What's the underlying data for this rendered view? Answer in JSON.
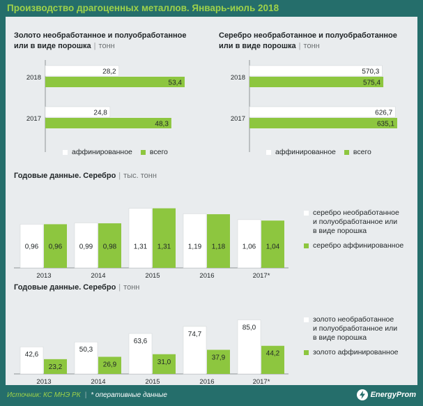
{
  "header": {
    "title": "Производство драгоценных металлов. Январь-июль 2018"
  },
  "colors": {
    "background": "#256e6b",
    "panel": "#e9ecee",
    "white_bar": "#ffffff",
    "green_bar": "#8dc63f",
    "axis": "#8f9496",
    "title_green": "#9ed24a"
  },
  "chart_data": [
    {
      "id": "gold",
      "type": "bar",
      "orientation": "horizontal",
      "title_line1": "Золото необработанное  и полуобработанное",
      "title_line2": "или в виде порошка",
      "unit": "тонн",
      "categories": [
        "2018",
        "2017"
      ],
      "series": [
        {
          "name": "аффинированное",
          "values": [
            28.2,
            24.8
          ],
          "labels": [
            "28,2",
            "24,8"
          ],
          "color": "#ffffff"
        },
        {
          "name": "всего",
          "values": [
            53.4,
            48.3
          ],
          "labels": [
            "53,4",
            "48,3"
          ],
          "color": "#8dc63f"
        }
      ]
    },
    {
      "id": "silver",
      "type": "bar",
      "orientation": "horizontal",
      "title_line1": "Серебро необработанное  и полуобработанное",
      "title_line2": "или в виде порошка",
      "unit": "тонн",
      "categories": [
        "2018",
        "2017"
      ],
      "series": [
        {
          "name": "аффинированное",
          "values": [
            570.3,
            626.7
          ],
          "labels": [
            "570,3",
            "626,7"
          ],
          "color": "#ffffff"
        },
        {
          "name": "всего",
          "values": [
            575.4,
            635.1
          ],
          "labels": [
            "575,4",
            "635,1"
          ],
          "color": "#8dc63f"
        }
      ]
    },
    {
      "id": "annual-silver",
      "type": "bar",
      "orientation": "vertical",
      "title": "Годовые данные. Серебро",
      "unit": "тыс. тонн",
      "categories": [
        "2013",
        "2014",
        "2015",
        "2016",
        "2017*"
      ],
      "ylim": [
        0,
        1.35
      ],
      "series": [
        {
          "name": "серебро необработанное и полуобработанное или в виде порошка",
          "values": [
            0.96,
            0.99,
            1.31,
            1.19,
            1.06
          ],
          "labels": [
            "0,96",
            "0,99",
            "1,31",
            "1,19",
            "1,06"
          ],
          "color": "#ffffff"
        },
        {
          "name": "серебро аффинированное",
          "values": [
            0.96,
            0.98,
            1.31,
            1.18,
            1.04
          ],
          "labels": [
            "0,96",
            "0,98",
            "1,31",
            "1,18",
            "1,04"
          ],
          "color": "#8dc63f"
        }
      ]
    },
    {
      "id": "annual-gold",
      "type": "bar",
      "orientation": "vertical",
      "title": "Годовые данные. Серебро",
      "unit": "тонн",
      "categories": [
        "2013",
        "2014",
        "2015",
        "2016",
        "2017*"
      ],
      "ylim": [
        0,
        90
      ],
      "series": [
        {
          "name": "золото необработанное и полуобработанное или в виде порошка",
          "values": [
            42.6,
            50.3,
            63.6,
            74.7,
            85.0
          ],
          "labels": [
            "42,6",
            "50,3",
            "63,6",
            "74,7",
            "85,0"
          ],
          "color": "#ffffff"
        },
        {
          "name": "золото аффинированное",
          "values": [
            23.2,
            26.9,
            31.0,
            37.9,
            44.2
          ],
          "labels": [
            "23,2",
            "26,9",
            "31,0",
            "37,9",
            "44,2"
          ],
          "color": "#8dc63f"
        }
      ]
    }
  ],
  "legends": {
    "annual_silver": [
      {
        "lines": [
          "серебро необработанное",
          "и полуобработанное или",
          "в виде порошка"
        ]
      },
      {
        "lines": [
          "серебро аффинированное"
        ]
      }
    ],
    "annual_gold": [
      {
        "lines": [
          "золото необработанное",
          "и полуобработанное или",
          "в виде порошка"
        ]
      },
      {
        "lines": [
          "золото аффинированное"
        ]
      }
    ]
  },
  "footer": {
    "source": "Источник: КС МНЭ РК",
    "note": "* оперативные данные"
  },
  "logo": {
    "text": "EnergyProm"
  }
}
